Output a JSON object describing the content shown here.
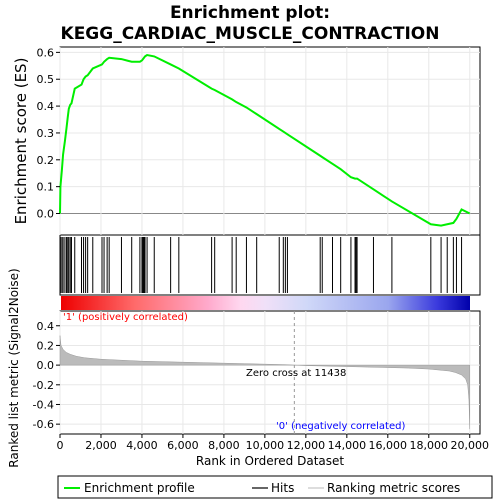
{
  "chart_data": {
    "type": "line",
    "title_line1": "Enrichment plot:",
    "title_line2": "KEGG_CARDIAC_MUSCLE_CONTRACTION",
    "es_ylabel": "Enrichment score (ES)",
    "metric_ylabel": "Ranked list metric (Signal2Noise)",
    "xlabel": "Rank in Ordered Dataset",
    "xlim": [
      0,
      20500
    ],
    "es_ylim": [
      -0.08,
      0.62
    ],
    "metric_ylim": [
      -0.7,
      0.55
    ],
    "x_ticks": [
      0,
      2000,
      4000,
      6000,
      8000,
      10000,
      12000,
      14000,
      16000,
      18000,
      20000
    ],
    "x_tick_labels": [
      "0",
      "2,000",
      "4,000",
      "6,000",
      "8,000",
      "10,000",
      "12,000",
      "14,000",
      "16,000",
      "18,000",
      "20,000"
    ],
    "es_ticks": [
      0.0,
      0.1,
      0.2,
      0.3,
      0.4,
      0.5,
      0.6
    ],
    "es_tick_labels": [
      "0.0",
      "0.1",
      "0.2",
      "0.3",
      "0.4",
      "0.5",
      "0.6"
    ],
    "metric_ticks": [
      0.4,
      0.2,
      0.0,
      -0.2,
      -0.4,
      -0.6
    ],
    "metric_tick_labels": [
      "0.4",
      "0.2",
      "0.0",
      "-0.2",
      "-0.4",
      "-0.6"
    ],
    "zero_cross": 11438,
    "zero_cross_label": "Zero cross at 11438",
    "pos_label": "'1' (positively correlated)",
    "neg_label": "'0' (negatively correlated)",
    "legend": [
      "Enrichment profile",
      "Hits",
      "Ranking metric scores"
    ],
    "hits": [
      20,
      90,
      150,
      240,
      320,
      380,
      430,
      500,
      560,
      720,
      1050,
      1150,
      1250,
      1350,
      1600,
      2050,
      2150,
      2300,
      2400,
      3000,
      3500,
      3900,
      4000,
      4050,
      4100,
      4150,
      4250,
      4600,
      5400,
      5800,
      7400,
      7550,
      8400,
      8600,
      9100,
      9600,
      10700,
      10900,
      11000,
      11100,
      12700,
      12800,
      13300,
      13700,
      14200,
      14400,
      14450,
      14500,
      15300,
      16200,
      18100,
      18600,
      18900,
      19200,
      19350,
      19600
    ],
    "es_curve": {
      "x": [
        0,
        20,
        90,
        150,
        240,
        320,
        380,
        430,
        500,
        560,
        720,
        1050,
        1150,
        1250,
        1350,
        1600,
        2050,
        2150,
        2300,
        2400,
        3000,
        3500,
        3900,
        4000,
        4050,
        4100,
        4150,
        4250,
        4600,
        5400,
        5800,
        7400,
        7550,
        8400,
        8600,
        9100,
        9600,
        10700,
        10900,
        11000,
        11100,
        12700,
        12800,
        13300,
        13700,
        14200,
        14400,
        14450,
        14500,
        15300,
        16200,
        18100,
        18600,
        18900,
        19200,
        19350,
        19600,
        20000
      ],
      "y": [
        0.0,
        0.1,
        0.16,
        0.22,
        0.27,
        0.32,
        0.36,
        0.39,
        0.405,
        0.41,
        0.465,
        0.48,
        0.5,
        0.51,
        0.515,
        0.54,
        0.555,
        0.565,
        0.575,
        0.58,
        0.575,
        0.565,
        0.565,
        0.57,
        0.575,
        0.58,
        0.585,
        0.59,
        0.585,
        0.555,
        0.54,
        0.465,
        0.46,
        0.425,
        0.415,
        0.395,
        0.37,
        0.315,
        0.305,
        0.3,
        0.295,
        0.215,
        0.21,
        0.185,
        0.165,
        0.135,
        0.13,
        0.13,
        0.13,
        0.09,
        0.045,
        -0.04,
        -0.045,
        -0.04,
        -0.035,
        -0.02,
        0.015,
        0.0
      ]
    },
    "metric_curve": {
      "x": [
        0,
        50,
        150,
        300,
        500,
        800,
        1200,
        2000,
        3000,
        4000,
        5000,
        6000,
        7000,
        8000,
        9000,
        10000,
        11000,
        11438,
        12000,
        13000,
        14000,
        15000,
        16000,
        17000,
        18000,
        18500,
        19000,
        19300,
        19600,
        19800,
        19900,
        19960,
        20000
      ],
      "y": [
        0.3,
        0.2,
        0.16,
        0.13,
        0.11,
        0.09,
        0.075,
        0.06,
        0.05,
        0.04,
        0.035,
        0.03,
        0.025,
        0.02,
        0.015,
        0.01,
        0.005,
        0.0,
        -0.005,
        -0.01,
        -0.015,
        -0.02,
        -0.025,
        -0.03,
        -0.04,
        -0.05,
        -0.06,
        -0.075,
        -0.1,
        -0.14,
        -0.2,
        -0.35,
        -0.65
      ]
    },
    "colors": {
      "profile": "#00ee00",
      "hits": "#000000",
      "metric_fill": "#bbbbbb",
      "pos_text": "#ff0000",
      "neg_text": "#0000ff",
      "zero_line": "#999999"
    }
  }
}
